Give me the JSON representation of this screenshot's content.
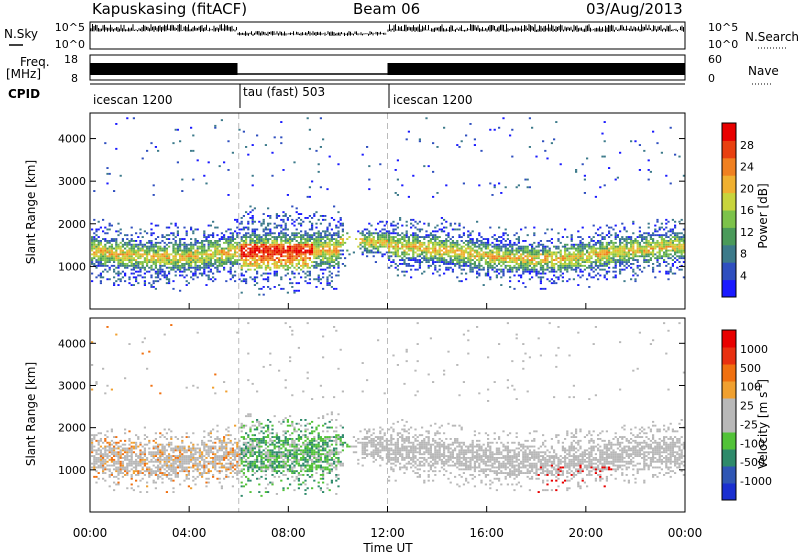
{
  "header": {
    "station": "Kapuskasing (fitACF)",
    "beam": "Beam 06",
    "date": "03/Aug/2013"
  },
  "colors": {
    "power_scale": [
      "#1a1aff",
      "#2f4fbf",
      "#3c7a8a",
      "#4a9a5a",
      "#7cc24a",
      "#c8d43c",
      "#f0b030",
      "#f08020",
      "#e84010",
      "#e80000"
    ],
    "velocity_scale": [
      "#1a2fd0",
      "#2f56b4",
      "#2e8a6a",
      "#52c238",
      "#b8b8b8",
      "#b8b8b8",
      "#f0a030",
      "#f07010",
      "#e83010",
      "#e80000"
    ],
    "noise_color": "#000000",
    "gridline": "#bbbbbb"
  },
  "chart_data": [
    {
      "type": "line",
      "panel": "N.Sky / N.Search",
      "left_label": "N.Sky",
      "right_label": "N.Search",
      "left_ticks": [
        "10^5",
        "10^0"
      ],
      "right_ticks": [
        "10^5",
        "10^0"
      ]
    },
    {
      "type": "line",
      "panel": "Freq / Nave",
      "left_label_line1": "Freq.",
      "left_label_line2": "[MHz]",
      "right_label": "Nave",
      "left_ticks": [
        "18",
        "8"
      ],
      "right_ticks": [
        "60",
        "0"
      ],
      "segments": [
        {
          "from_hour": 0.0,
          "to_hour": 5.95,
          "state": "high"
        },
        {
          "from_hour": 5.95,
          "to_hour": 12.0,
          "state": "low"
        },
        {
          "from_hour": 12.0,
          "to_hour": 24.0,
          "state": "high"
        }
      ]
    },
    {
      "type": "table",
      "panel": "CPID",
      "label": "CPID",
      "modes": [
        {
          "start_hour": 0.0,
          "name": "icescan 1200"
        },
        {
          "start_hour": 5.95,
          "name": "tau (fast) 503"
        },
        {
          "start_hour": 12.0,
          "name": "icescan 1200"
        }
      ]
    },
    {
      "type": "heatmap",
      "panel": "Power",
      "ylabel": "Slant Range [km]",
      "ylim": [
        0,
        4600
      ],
      "yticks": [
        1000,
        2000,
        3000,
        4000
      ],
      "xlim": [
        0,
        24
      ],
      "colorbar_label": "Power [dB]",
      "colorbar_ticks": [
        "4",
        "8",
        "12",
        "16",
        "20",
        "24",
        "28"
      ]
    },
    {
      "type": "heatmap",
      "panel": "Velocity",
      "ylabel": "Slant Range [km]",
      "ylim": [
        0,
        4600
      ],
      "yticks": [
        1000,
        2000,
        3000,
        4000
      ],
      "xlim": [
        0,
        24
      ],
      "xticks": [
        "00:00",
        "04:00",
        "08:00",
        "12:00",
        "16:00",
        "20:00",
        "00:00"
      ],
      "xlabel": "Time UT",
      "colorbar_label": "Velocity  [m s",
      "colorbar_label_sup": "-1",
      "colorbar_label_end": "]",
      "colorbar_ticks": [
        "1000",
        "500",
        "100",
        "25",
        "-25",
        "-100",
        "-500",
        "-1000"
      ]
    }
  ]
}
